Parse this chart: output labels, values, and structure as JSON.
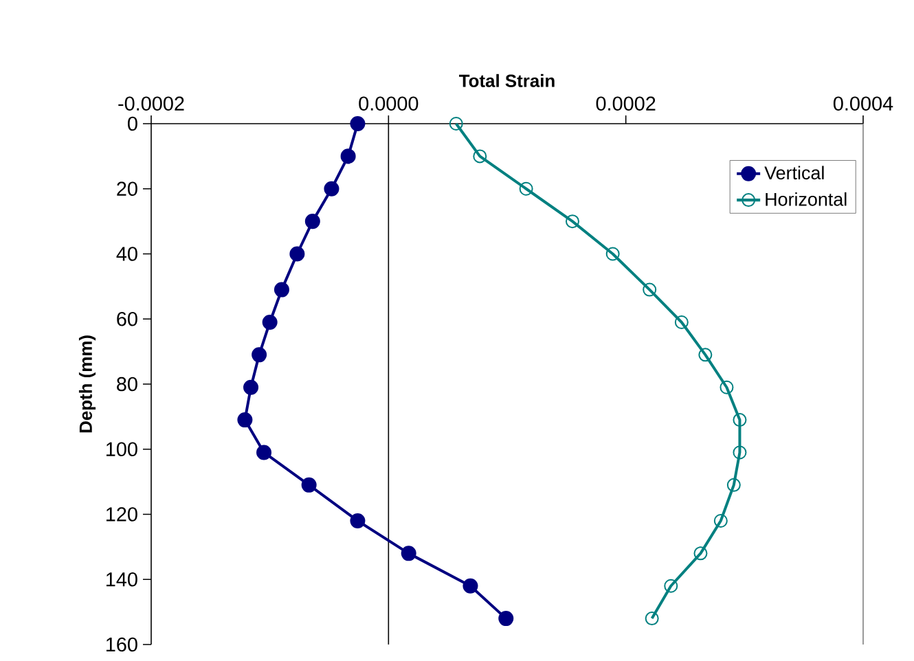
{
  "chart_data": {
    "type": "line",
    "xlabel": "Total Strain",
    "ylabel": "Depth (mm)",
    "xlim": [
      -0.0002,
      0.0004
    ],
    "xticks": [
      -0.0002,
      {
        "value": 0,
        "label": "0.0000"
      },
      0.0002,
      0.0004
    ],
    "ylim": [
      160,
      0
    ],
    "yticks": [
      0,
      20,
      40,
      60,
      80,
      100,
      120,
      140,
      160
    ],
    "legend": "top right",
    "marker": "circle",
    "grid": false,
    "ref_lines": [
      {
        "axis": "x",
        "value": 0
      }
    ],
    "series": [
      {
        "name": "Vertical",
        "color": "#000080",
        "x": [
          -2.6e-05,
          -3.4e-05,
          -4.8e-05,
          -6.4e-05,
          -7.7e-05,
          -9e-05,
          -0.0001,
          -0.000109,
          -0.000116,
          -0.000121,
          -0.000105,
          -6.7e-05,
          -2.6e-05,
          1.7e-05,
          6.9e-05,
          9.9e-05
        ],
        "values": [
          0,
          10,
          20,
          30,
          40,
          51,
          61,
          71,
          81,
          91,
          101,
          111,
          122,
          132,
          142,
          152
        ]
      },
      {
        "name": "Horizontal",
        "color": "#008080",
        "x": [
          5.7e-05,
          7.7e-05,
          0.000116,
          0.000155,
          0.000189,
          0.00022,
          0.000247,
          0.000267,
          0.000285,
          0.000296,
          0.000296,
          0.000291,
          0.00028,
          0.000263,
          0.000238,
          0.000222
        ],
        "values": [
          0,
          10,
          20,
          30,
          40,
          51,
          61,
          71,
          81,
          91,
          101,
          111,
          122,
          132,
          142,
          152
        ]
      }
    ]
  }
}
